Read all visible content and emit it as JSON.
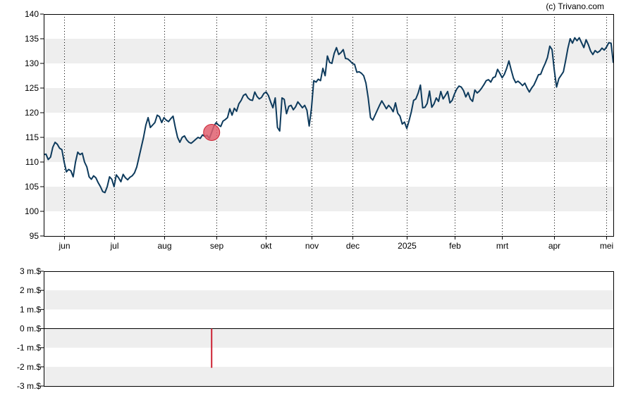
{
  "copyright": "(c) Trivano.com",
  "colors": {
    "line": "#0d3a5c",
    "band": "#eeeeee",
    "marker": "#e06070",
    "marker_stroke": "#cc2233",
    "volume_bar": "#cc2233",
    "axis": "#000000"
  },
  "chart_data": [
    {
      "type": "line",
      "x_tick_labels": [
        "jun",
        "jul",
        "aug",
        "sep",
        "okt",
        "nov",
        "dec",
        "2025",
        "feb",
        "mrt",
        "apr",
        "mei"
      ],
      "x_tick_index": [
        9,
        31,
        53,
        76,
        98,
        118,
        136,
        160,
        181,
        202,
        225,
        248
      ],
      "ylim": [
        95,
        140
      ],
      "y_ticks": [
        95,
        100,
        105,
        110,
        115,
        120,
        125,
        130,
        135,
        140
      ],
      "grid": "horizontal bands, dotted vertical lines at month ticks",
      "highlight_index": 74,
      "values": [
        111.5,
        111.6,
        110.5,
        111,
        113,
        114,
        113.6,
        112.8,
        112.5,
        110,
        108,
        108.5,
        108.2,
        107,
        110,
        112,
        111.5,
        111.8,
        110,
        109,
        107,
        106.5,
        107.2,
        106.8,
        105.8,
        105,
        104,
        103.8,
        105,
        107,
        106.5,
        105,
        107.4,
        106.8,
        106,
        107.5,
        106.8,
        106.4,
        106.9,
        107.2,
        107.8,
        109,
        111,
        113,
        115,
        117.5,
        119,
        117,
        117.5,
        118,
        119.5,
        119.2,
        118,
        119,
        118.5,
        118.2,
        118.8,
        119.3,
        117,
        115,
        114,
        115,
        115.3,
        114.5,
        114,
        113.8,
        114.2,
        114.6,
        115,
        114.8,
        115.5,
        115.2,
        115.4,
        114.8,
        116,
        117.3,
        118,
        117.5,
        117.2,
        118.3,
        118.6,
        119,
        120.8,
        119.5,
        120.9,
        120.3,
        121.8,
        122.5,
        123.5,
        123.8,
        123,
        122.6,
        122.5,
        124.2,
        123.3,
        122.8,
        123.1,
        123.9,
        124.2,
        123.5,
        122.2,
        121,
        123,
        117,
        116.3,
        123,
        122.7,
        119.8,
        121.3,
        121.5,
        120.6,
        121.2,
        122.2,
        121.6,
        121,
        121.5,
        120.5,
        117.3,
        121,
        126.5,
        126.2,
        126.8,
        126.5,
        129,
        127.5,
        131.5,
        130.2,
        130,
        132,
        133.2,
        131.8,
        132.2,
        132.8,
        131,
        130.9,
        130.5,
        130,
        129.8,
        128.2,
        128.3,
        128,
        127.5,
        126,
        123,
        119,
        118.5,
        119.5,
        120.5,
        121.5,
        122.4,
        121.6,
        120.8,
        121.5,
        121,
        120.2,
        122,
        119.9,
        119.3,
        117.7,
        118.1,
        116.8,
        118.4,
        120.2,
        122.5,
        122.8,
        124,
        125.6,
        121,
        121.1,
        121.9,
        124.4,
        121.1,
        121.8,
        123,
        122.3,
        124.3,
        122.8,
        123.5,
        124.3,
        122,
        122.5,
        123.8,
        124.8,
        125.4,
        125.2,
        124.5,
        123.2,
        124.1,
        122.8,
        122.3,
        124.6,
        124,
        124.4,
        125,
        125.7,
        126.5,
        126.7,
        126.2,
        127.1,
        127.3,
        128.8,
        128,
        127.1,
        127.8,
        129,
        130.5,
        128.7,
        127,
        126.1,
        126.4,
        126,
        125.5,
        126,
        125,
        124.2,
        125,
        125.6,
        126.6,
        127.7,
        127.8,
        129,
        130,
        131.2,
        133.5,
        132.8,
        128.6,
        125.2,
        126.9,
        127.6,
        128.3,
        130.6,
        133.1,
        135,
        134.1,
        135.2,
        134.6,
        135.2,
        134.2,
        133.2,
        134.8,
        133.8,
        132.5,
        131.8,
        132.6,
        132.2,
        132.5,
        133.1,
        132.7,
        133.3,
        134.2,
        134.1,
        130.1
      ]
    },
    {
      "type": "bar",
      "y_tick_labels": [
        "3 m.$",
        "2 m.$",
        "1 m.$",
        "0 m.$",
        "-1 m.$",
        "-2 m.$",
        "-3 m.$"
      ],
      "y_ticks": [
        3,
        2,
        1,
        0,
        -1,
        -2,
        -3
      ],
      "ylim": [
        -3,
        3
      ],
      "bars": [
        {
          "index": 74,
          "value": -2.05
        }
      ]
    }
  ]
}
